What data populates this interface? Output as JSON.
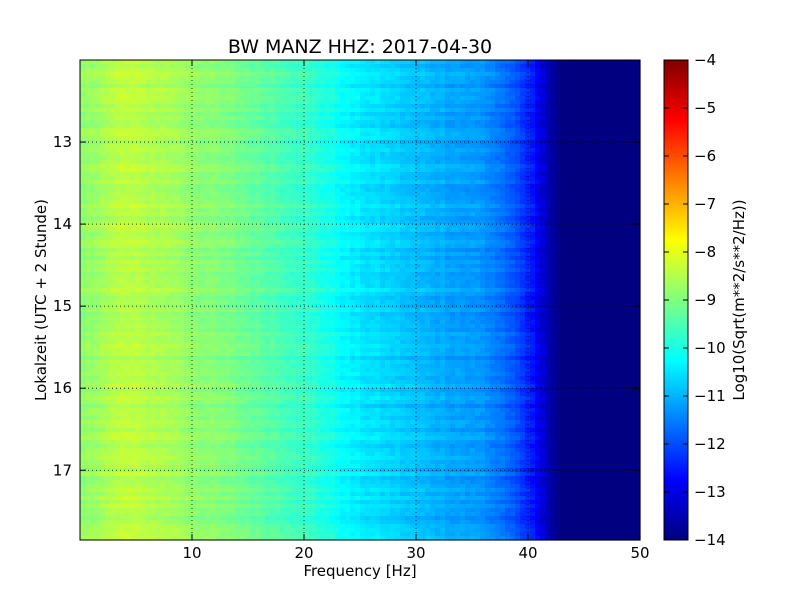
{
  "chart_data": {
    "type": "heatmap",
    "title": "BW MANZ HHZ: 2017-04-30",
    "xlabel": "Frequency [Hz]",
    "ylabel": "Lokalzeit (UTC + 2 Stunde)",
    "xlim": [
      0,
      50
    ],
    "ylim": [
      17.85,
      12.0
    ],
    "x_ticks": [
      10,
      20,
      30,
      40,
      50
    ],
    "x_tick_labels": [
      "10",
      "20",
      "30",
      "40",
      "50"
    ],
    "y_ticks": [
      13,
      14,
      15,
      16,
      17
    ],
    "y_tick_labels": [
      "13",
      "14",
      "15",
      "16",
      "17"
    ],
    "grid": true,
    "colorbar": {
      "label": "Log10(Sqrt(m**2/s**2/Hz))",
      "colormap": "jet",
      "range": [
        -14,
        -4
      ],
      "ticks": [
        -4,
        -5,
        -6,
        -7,
        -8,
        -9,
        -10,
        -11,
        -12,
        -13,
        -14
      ],
      "tick_labels": [
        "−4",
        "−5",
        "−6",
        "−7",
        "−8",
        "−9",
        "−10",
        "−11",
        "−12",
        "−13",
        "−14"
      ]
    },
    "frequency_profile": {
      "frequency_hz": [
        0,
        2,
        4,
        6,
        8,
        10,
        14,
        18,
        20,
        22,
        24,
        26,
        28,
        30,
        33,
        36,
        38,
        40,
        41,
        42,
        43,
        45,
        50
      ],
      "log10_amplitude": [
        -8.9,
        -8.6,
        -8.4,
        -8.5,
        -8.6,
        -8.8,
        -9.1,
        -9.5,
        -9.7,
        -10.0,
        -10.35,
        -10.55,
        -10.7,
        -10.9,
        -11.1,
        -11.3,
        -11.7,
        -12.4,
        -12.9,
        -13.6,
        -14.0,
        -14.0,
        -14.0
      ]
    }
  }
}
